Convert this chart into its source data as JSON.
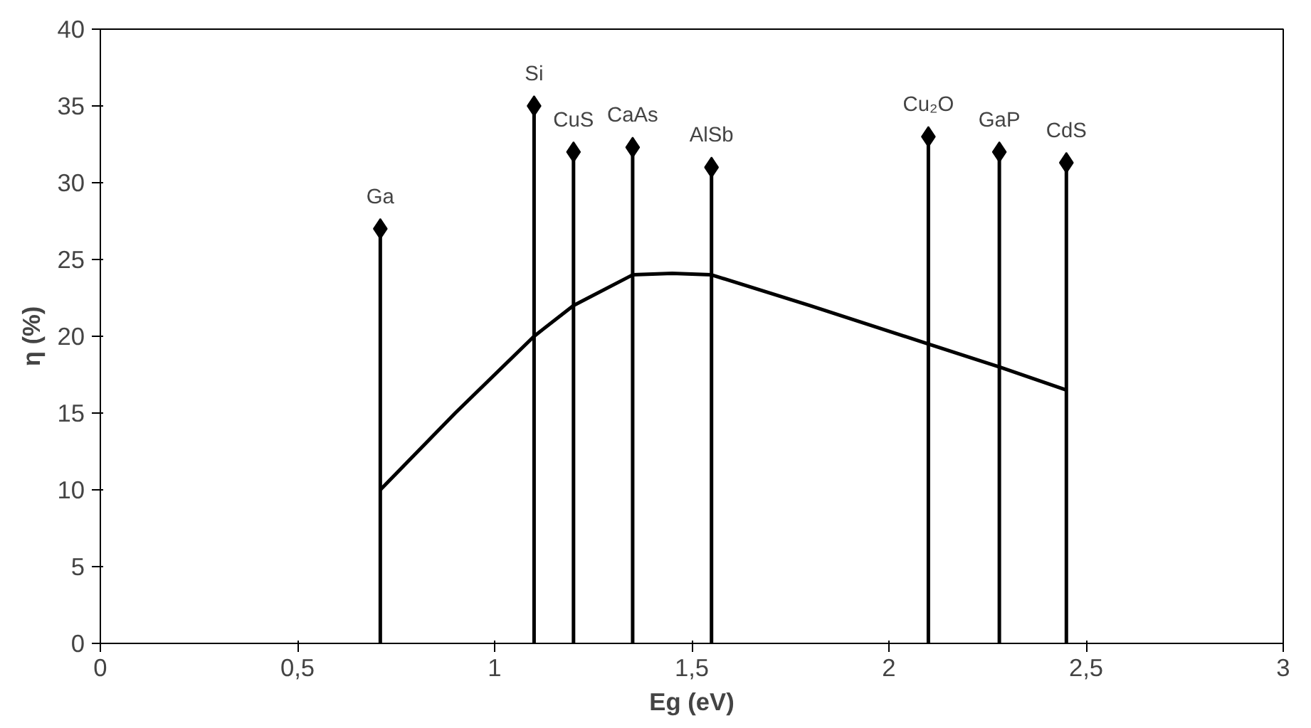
{
  "chart_data": {
    "type": "lollipop",
    "xlabel": "Eg (eV)",
    "ylabel": "η (%)",
    "xlim": [
      0,
      3
    ],
    "ylim": [
      0,
      40
    ],
    "xticks": [
      0,
      {
        "value": 0.5,
        "label": "0,5"
      },
      1,
      {
        "value": 1.5,
        "label": "1,5"
      },
      2,
      {
        "value": 2.5,
        "label": "2,5"
      },
      3
    ],
    "yticks": [
      0,
      5,
      10,
      15,
      20,
      25,
      30,
      35,
      40
    ],
    "grid": false,
    "marker": "diamond",
    "series": [
      {
        "color": "#000000",
        "x": [
          0.71,
          1.1,
          1.2,
          1.35,
          1.55,
          2.1,
          2.28,
          2.45
        ],
        "values": [
          27,
          35,
          32,
          32.3,
          31,
          33,
          32,
          31.3
        ]
      },
      {
        "type": "line",
        "color": "#000000",
        "marker": "none",
        "line_style": "solid",
        "x": [
          0.71,
          0.9,
          1.1,
          1.2,
          1.35,
          1.45,
          1.55,
          1.8,
          2.1,
          2.28,
          2.45
        ],
        "values": [
          10,
          15,
          20,
          22,
          24,
          24.1,
          24,
          22,
          19.5,
          18,
          16.5
        ]
      }
    ],
    "annotations": [
      {
        "text": "Ga",
        "x": 0.71,
        "y": 27
      },
      {
        "text": "Si",
        "x": 1.1,
        "y": 35
      },
      {
        "text": "CuS",
        "x": 1.2,
        "y": 32
      },
      {
        "text": "CaAs",
        "x": 1.35,
        "y": 32.3
      },
      {
        "text": "AlSb",
        "x": 1.55,
        "y": 31
      },
      {
        "text": "Cu₂O",
        "x": 2.1,
        "y": 33
      },
      {
        "text": "GaP",
        "x": 2.28,
        "y": 32
      },
      {
        "text": "CdS",
        "x": 2.45,
        "y": 31.3
      }
    ]
  }
}
